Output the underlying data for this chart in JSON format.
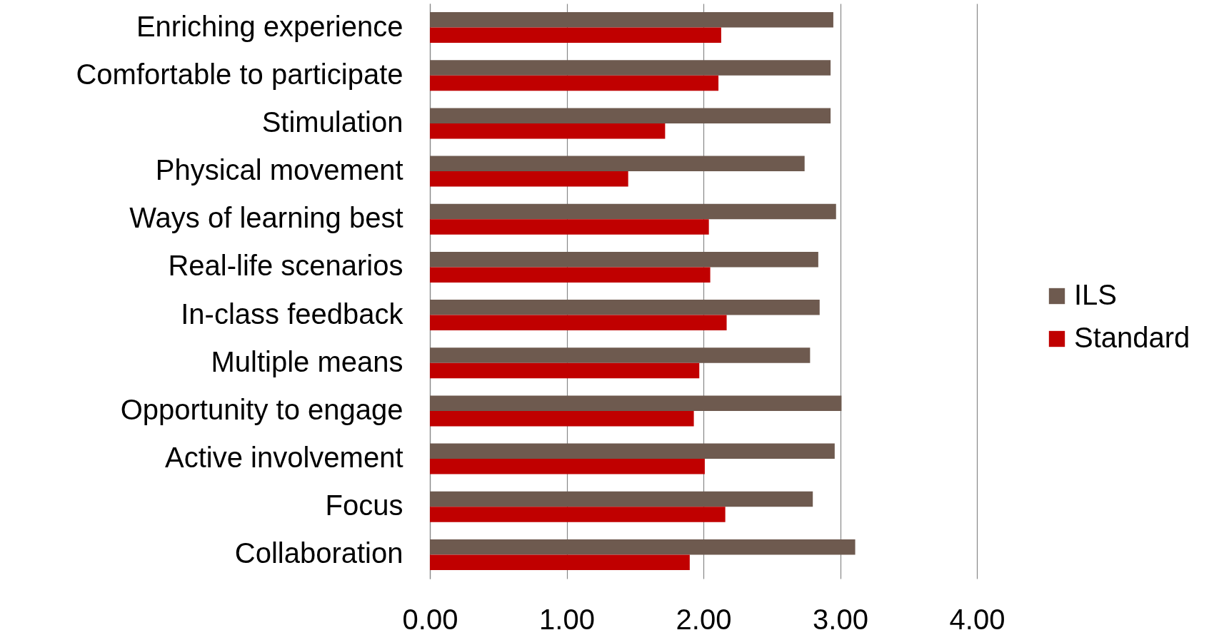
{
  "chart_data": {
    "type": "bar",
    "orientation": "horizontal",
    "categories": [
      "Enriching experience",
      "Comfortable to participate",
      "Stimulation",
      "Physical movement",
      "Ways of learning best",
      "Real-life scenarios",
      "In-class feedback",
      "Multiple means",
      "Opportunity to engage",
      "Active involvement",
      "Focus",
      "Collaboration"
    ],
    "series": [
      {
        "name": "ILS",
        "color": "#6e5a4f",
        "values": [
          2.95,
          2.93,
          2.93,
          2.74,
          2.97,
          2.84,
          2.85,
          2.78,
          3.01,
          2.96,
          2.8,
          3.11
        ]
      },
      {
        "name": "Standard",
        "color": "#c00000",
        "values": [
          2.13,
          2.11,
          1.72,
          1.45,
          2.04,
          2.05,
          2.17,
          1.97,
          1.93,
          2.01,
          2.16,
          1.9
        ]
      }
    ],
    "xlim": [
      0,
      4
    ],
    "xticks": [
      {
        "value": 0,
        "label": "0.00"
      },
      {
        "value": 1,
        "label": "1.00"
      },
      {
        "value": 2,
        "label": "2.00"
      },
      {
        "value": 3,
        "label": "3.00"
      },
      {
        "value": 4,
        "label": "4.00"
      }
    ],
    "grid": "x",
    "legend": "right"
  }
}
